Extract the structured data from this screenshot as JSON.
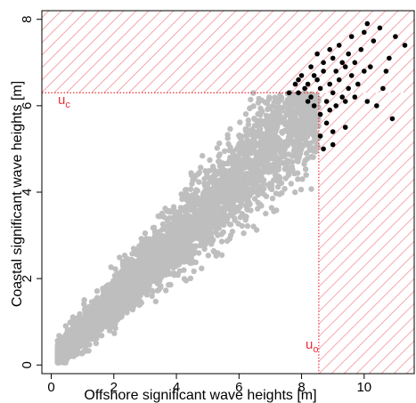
{
  "colors": {
    "bulk_points": "#bebebe",
    "extreme_points": "#000000",
    "threshold": "#e8303a",
    "hatch": "#f4a8ad",
    "axis": "#000000"
  },
  "chart_data": {
    "type": "scatter",
    "xlabel": "Offshore significant wave heights [m]",
    "ylabel": "Coastal significant wave heights [m]",
    "xlim": [
      -0.3,
      11.6
    ],
    "ylim": [
      -0.2,
      8.2
    ],
    "xticks": [
      0,
      2,
      4,
      6,
      8,
      10
    ],
    "yticks": [
      0,
      2,
      4,
      6,
      8
    ],
    "grid": false,
    "thresholds": {
      "offshore": {
        "label": "u",
        "subscript": "o",
        "value": 8.55
      },
      "coastal": {
        "label": "u",
        "subscript": "c",
        "value": 6.3
      }
    },
    "bulk_cloud": {
      "description_source": "grey points below thresholds",
      "x_range": [
        0.2,
        8.6
      ],
      "center_line": {
        "slope": 0.72,
        "intercept": 0.05
      },
      "max_y": 6.3
    },
    "extreme_points": [
      [
        7.6,
        6.3
      ],
      [
        7.8,
        6.5
      ],
      [
        7.9,
        6.6
      ],
      [
        7.9,
        6.3
      ],
      [
        8.0,
        6.7
      ],
      [
        8.1,
        6.4
      ],
      [
        8.2,
        6.5
      ],
      [
        8.3,
        6.9
      ],
      [
        8.3,
        6.2
      ],
      [
        8.4,
        6.0
      ],
      [
        8.5,
        7.2
      ],
      [
        8.5,
        6.6
      ],
      [
        8.6,
        6.4
      ],
      [
        8.6,
        5.8
      ],
      [
        8.7,
        7.0
      ],
      [
        8.7,
        6.8
      ],
      [
        8.8,
        6.1
      ],
      [
        8.8,
        5.6
      ],
      [
        8.9,
        7.3
      ],
      [
        8.9,
        6.5
      ],
      [
        8.9,
        5.9
      ],
      [
        9.0,
        7.1
      ],
      [
        9.0,
        6.3
      ],
      [
        9.0,
        5.4
      ],
      [
        9.1,
        6.8
      ],
      [
        9.1,
        6.0
      ],
      [
        9.2,
        7.4
      ],
      [
        9.2,
        6.6
      ],
      [
        9.3,
        7.0
      ],
      [
        9.3,
        6.2
      ],
      [
        9.4,
        6.9
      ],
      [
        9.4,
        5.5
      ],
      [
        9.5,
        7.2
      ],
      [
        9.5,
        6.4
      ],
      [
        9.6,
        7.6
      ],
      [
        9.6,
        6.7
      ],
      [
        9.7,
        7.0
      ],
      [
        9.8,
        6.5
      ],
      [
        9.9,
        7.3
      ],
      [
        10.0,
        6.8
      ],
      [
        10.0,
        7.7
      ],
      [
        10.1,
        7.9
      ],
      [
        10.2,
        6.9
      ],
      [
        10.3,
        7.5
      ],
      [
        10.4,
        6.0
      ],
      [
        10.5,
        7.8
      ],
      [
        10.6,
        6.4
      ],
      [
        10.7,
        6.8
      ],
      [
        10.8,
        7.1
      ],
      [
        10.9,
        5.7
      ],
      [
        11.0,
        7.6
      ],
      [
        11.3,
        7.4
      ],
      [
        8.6,
        5.3
      ],
      [
        8.7,
        5.0
      ],
      [
        9.0,
        5.1
      ],
      [
        8.2,
        6.1
      ],
      [
        8.4,
        6.7
      ],
      [
        9.4,
        6.1
      ],
      [
        9.7,
        6.2
      ],
      [
        10.1,
        6.1
      ]
    ]
  }
}
